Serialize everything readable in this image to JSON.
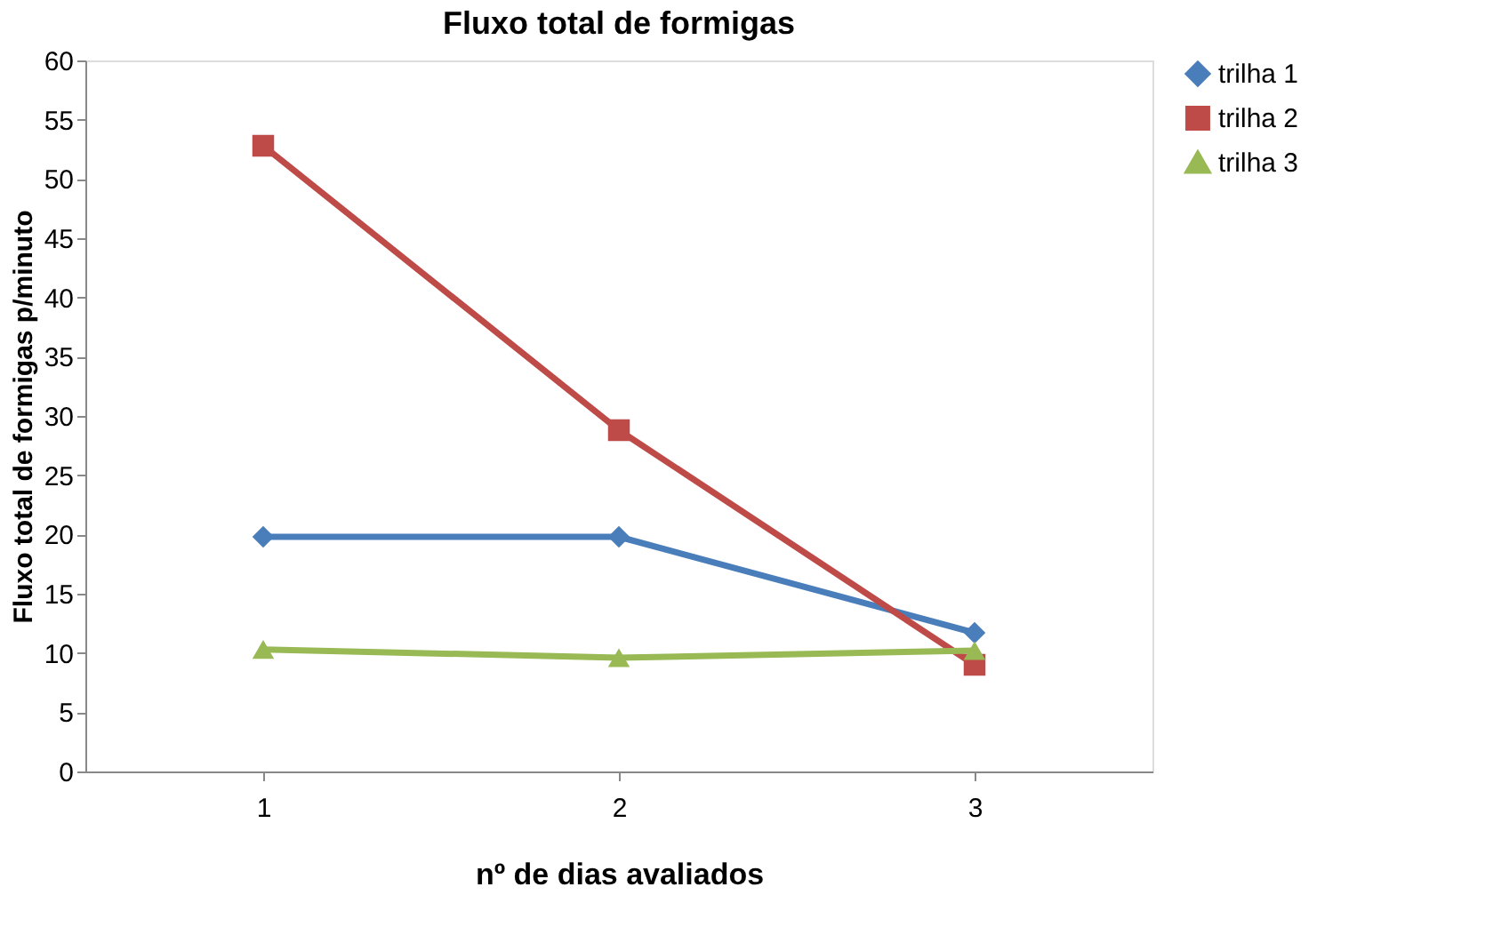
{
  "chart_data": {
    "type": "line",
    "title": "Fluxo total de formigas",
    "xlabel": "nº de dias avaliados",
    "ylabel": "Fluxo total de formigas p/minuto",
    "categories": [
      "1",
      "2",
      "3"
    ],
    "series": [
      {
        "name": "trilha 1",
        "color": "#4a7ebb",
        "marker": "diamond",
        "values": [
          19.8,
          19.8,
          11.7
        ]
      },
      {
        "name": "trilha 2",
        "color": "#be4b48",
        "marker": "square",
        "values": [
          52.8,
          28.8,
          9.0
        ]
      },
      {
        "name": "trilha 3",
        "color": "#98b954",
        "marker": "triangle",
        "values": [
          10.3,
          9.6,
          10.2
        ]
      }
    ],
    "ylim": [
      0,
      60
    ],
    "yticks": [
      0,
      5,
      10,
      15,
      20,
      25,
      30,
      35,
      40,
      45,
      50,
      55,
      60
    ],
    "grid": false,
    "legend": "right",
    "line_style": "solid"
  }
}
